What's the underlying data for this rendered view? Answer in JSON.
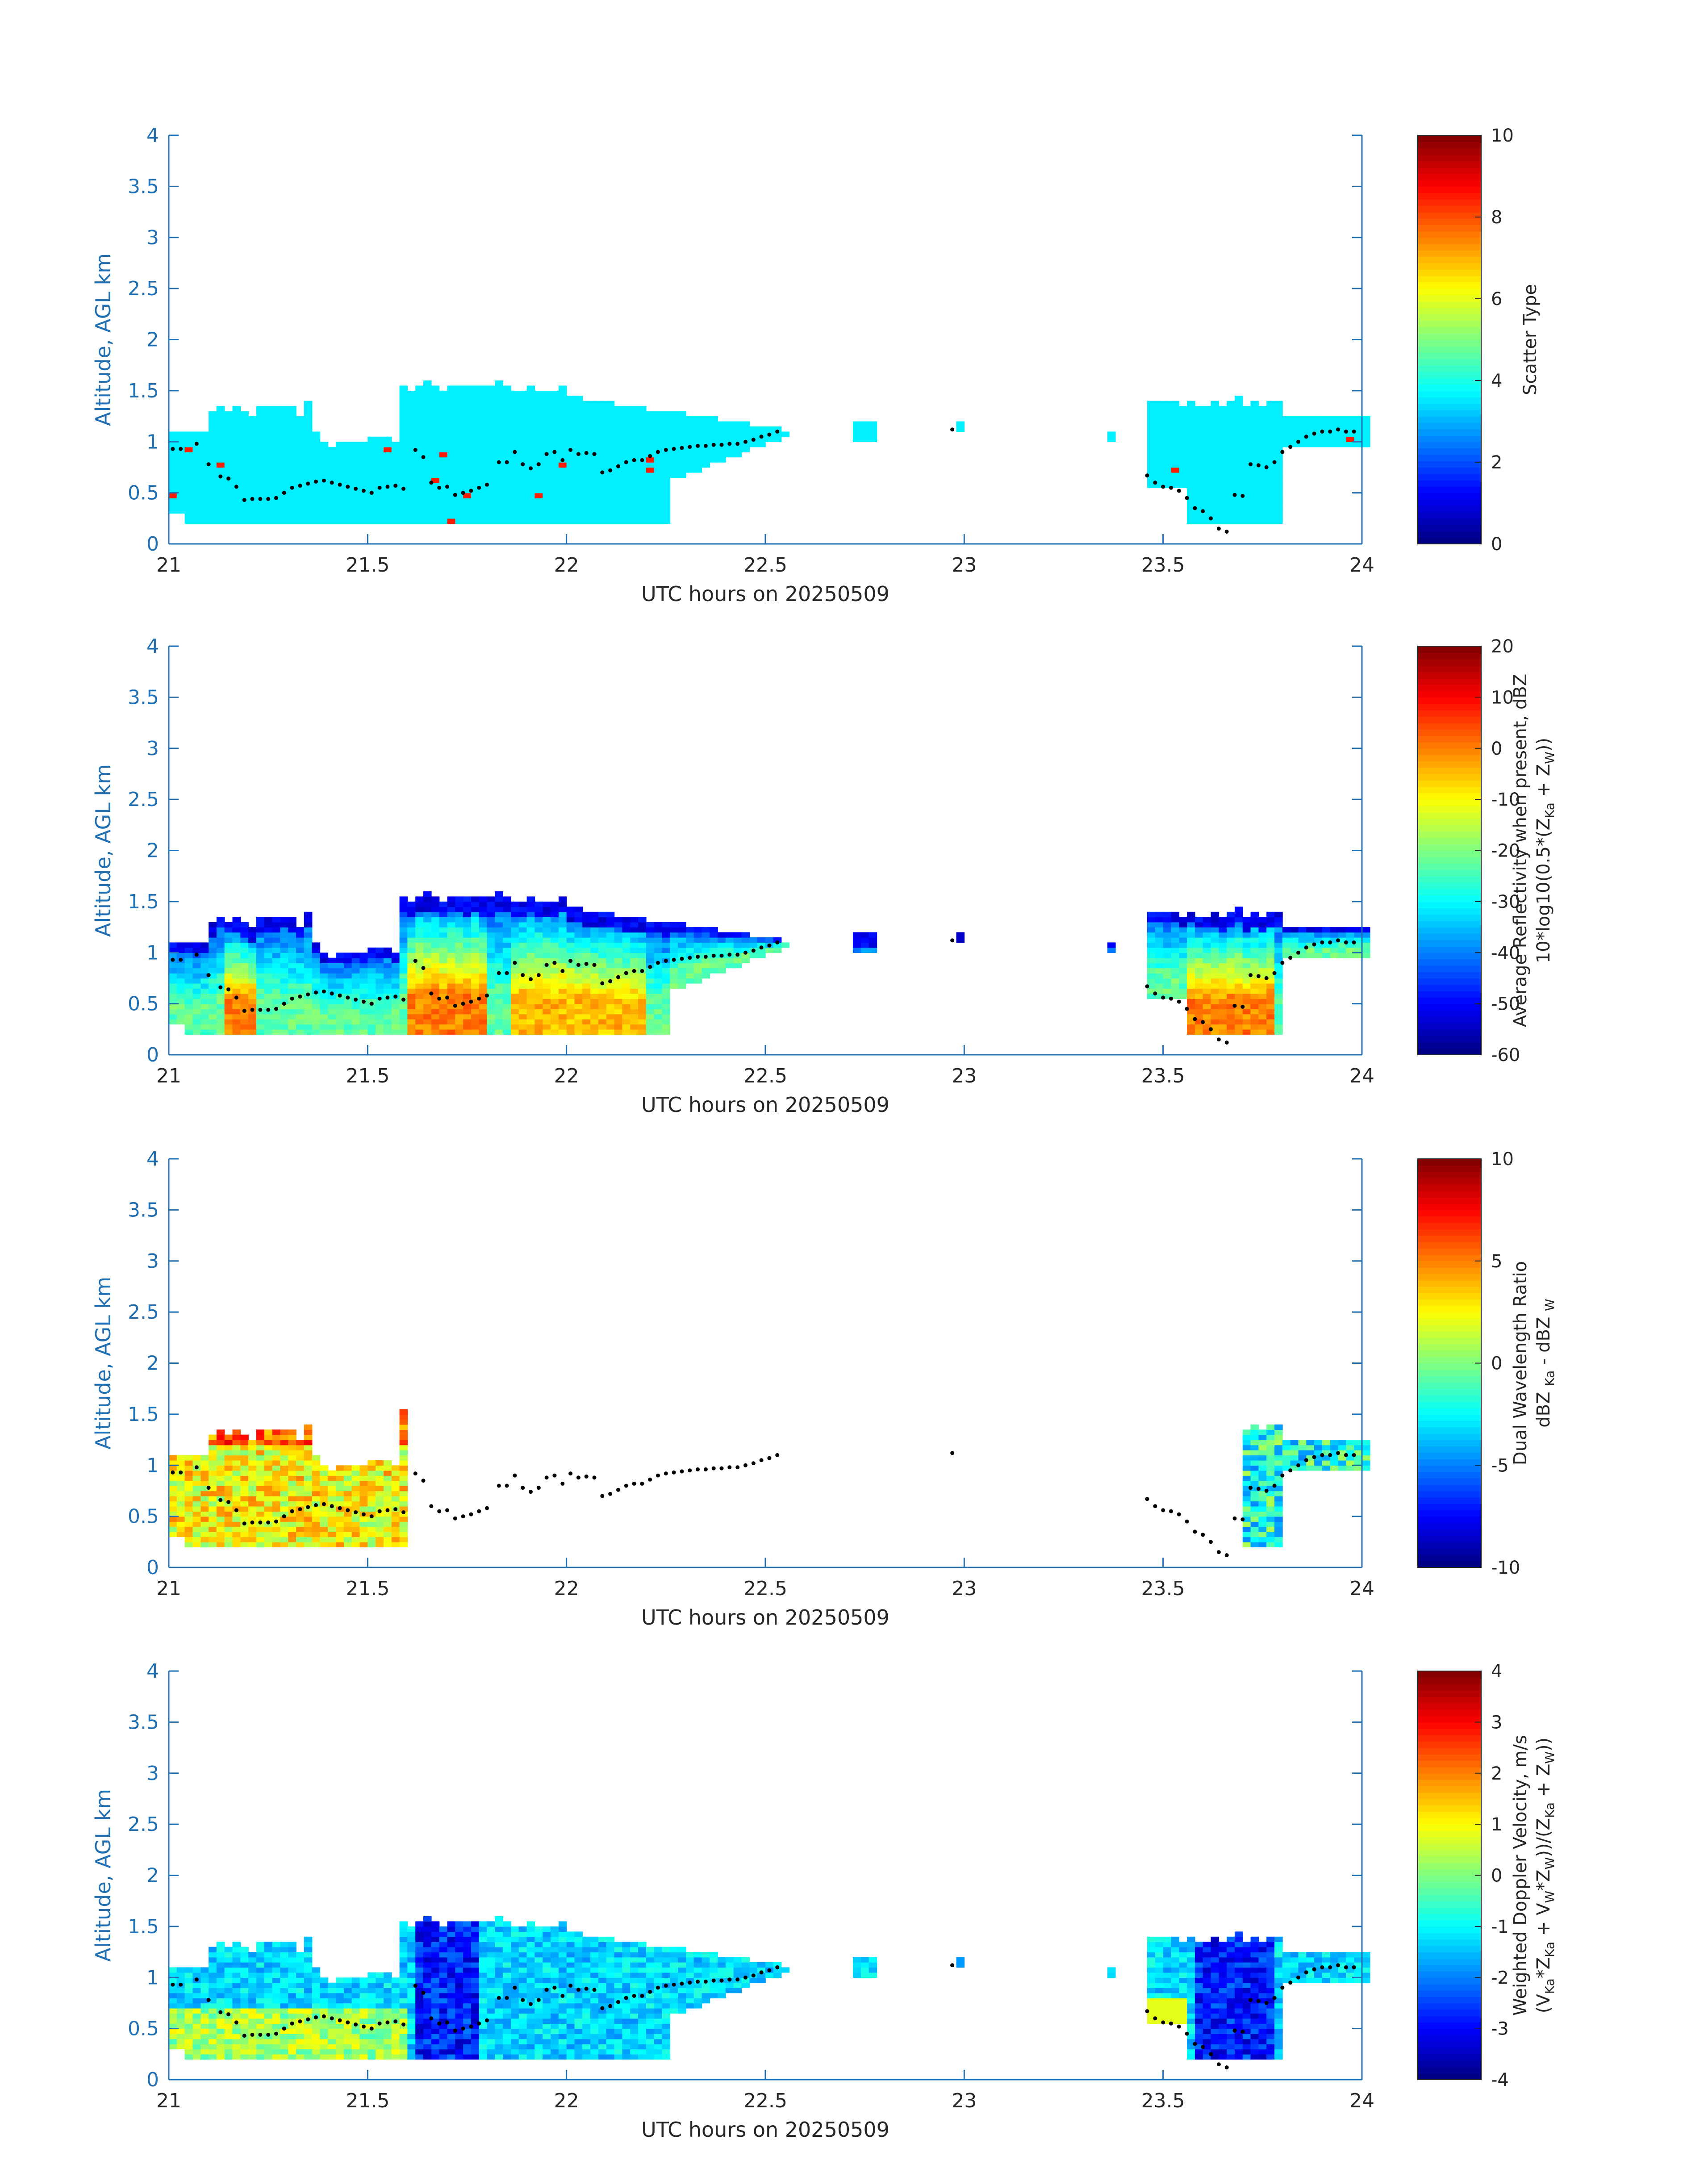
{
  "figure": {
    "xlabel": "UTC hours on 20250509",
    "ylabel": "Altitude, AGL km",
    "colors": {
      "axis": "#1f6fb2",
      "text": "#262626",
      "marker": "#000000"
    }
  },
  "chart_data": [
    {
      "type": "heatmap",
      "xlabel": "UTC hours on 20250509",
      "ylabel": "Altitude, AGL km",
      "xlim": [
        21,
        24
      ],
      "ylim": [
        0,
        4
      ],
      "xticks": [
        "21",
        "21.5",
        "22",
        "22.5",
        "23",
        "23.5",
        "24"
      ],
      "yticks": [
        "0",
        "0.5",
        "1",
        "1.5",
        "2",
        "2.5",
        "3",
        "3.5",
        "4"
      ],
      "colorbar": {
        "label": "Scatter Type",
        "label2": "",
        "range": [
          0,
          10
        ],
        "ticks": [
          "0",
          "2",
          "4",
          "6",
          "8",
          "10"
        ],
        "colormap": "jet"
      },
      "field": "scatter",
      "overlay_points": "cloud-base"
    },
    {
      "type": "heatmap",
      "xlabel": "UTC hours on 20250509",
      "ylabel": "Altitude, AGL km",
      "xlim": [
        21,
        24
      ],
      "ylim": [
        0,
        4
      ],
      "xticks": [
        "21",
        "21.5",
        "22",
        "22.5",
        "23",
        "23.5",
        "24"
      ],
      "yticks": [
        "0",
        "0.5",
        "1",
        "1.5",
        "2",
        "2.5",
        "3",
        "3.5",
        "4"
      ],
      "colorbar": {
        "label": "Average Reflectivity when present, dBZ",
        "label2_parts": [
          "10*log10(0.5*(Z",
          "Ka",
          " + Z",
          "W",
          "))"
        ],
        "range": [
          -60,
          20
        ],
        "ticks": [
          "-60",
          "-50",
          "-40",
          "-30",
          "-20",
          "-10",
          "0",
          "10",
          "20"
        ],
        "colormap": "jet"
      },
      "field": "reflectivity",
      "overlay_points": "cloud-base"
    },
    {
      "type": "heatmap",
      "xlabel": "UTC hours on 20250509",
      "ylabel": "Altitude, AGL km",
      "xlim": [
        21,
        24
      ],
      "ylim": [
        0,
        4
      ],
      "xticks": [
        "21",
        "21.5",
        "22",
        "22.5",
        "23",
        "23.5",
        "24"
      ],
      "yticks": [
        "0",
        "0.5",
        "1",
        "1.5",
        "2",
        "2.5",
        "3",
        "3.5",
        "4"
      ],
      "colorbar": {
        "label": "Dual Wavelength Ratio",
        "label2_parts": [
          "dBZ ",
          "Ka",
          " - dBZ ",
          "W",
          ""
        ],
        "range": [
          -10,
          10
        ],
        "ticks": [
          "-10",
          "-5",
          "0",
          "5",
          "10"
        ],
        "colormap": "jet"
      },
      "field": "dwr",
      "overlay_points": "cloud-base"
    },
    {
      "type": "heatmap",
      "xlabel": "UTC hours on 20250509",
      "ylabel": "Altitude, AGL km",
      "xlim": [
        21,
        24
      ],
      "ylim": [
        0,
        4
      ],
      "xticks": [
        "21",
        "21.5",
        "22",
        "22.5",
        "23",
        "23.5",
        "24"
      ],
      "yticks": [
        "0",
        "0.5",
        "1",
        "1.5",
        "2",
        "2.5",
        "3",
        "3.5",
        "4"
      ],
      "colorbar": {
        "label": "Weighted Doppler Velocity, m/s",
        "label2_parts": [
          "(V",
          "Ka",
          "*Z",
          "Ka",
          " + V",
          "W",
          "*Z",
          "W",
          "))/(Z",
          "Ka",
          " + Z",
          "W",
          "))"
        ],
        "range": [
          -4,
          4
        ],
        "ticks": [
          "-4",
          "-3",
          "-2",
          "-1",
          "0",
          "1",
          "2",
          "3",
          "4"
        ],
        "colormap": "jet"
      },
      "field": "velocity",
      "overlay_points": "cloud-base"
    }
  ],
  "cloud_base_points": {
    "hours": [
      21.01,
      21.03,
      21.07,
      21.1,
      21.13,
      21.15,
      21.17,
      21.19,
      21.21,
      21.23,
      21.25,
      21.27,
      21.29,
      21.31,
      21.33,
      21.35,
      21.37,
      21.39,
      21.41,
      21.43,
      21.45,
      21.47,
      21.49,
      21.51,
      21.53,
      21.55,
      21.57,
      21.59,
      21.62,
      21.64,
      21.66,
      21.68,
      21.7,
      21.72,
      21.74,
      21.76,
      21.78,
      21.8,
      21.83,
      21.85,
      21.87,
      21.89,
      21.91,
      21.93,
      21.95,
      21.97,
      21.99,
      22.01,
      22.03,
      22.05,
      22.07,
      22.09,
      22.11,
      22.13,
      22.15,
      22.17,
      22.19,
      22.21,
      22.23,
      22.25,
      22.27,
      22.29,
      22.31,
      22.33,
      22.35,
      22.37,
      22.39,
      22.41,
      22.43,
      22.45,
      22.47,
      22.49,
      22.51,
      22.53,
      22.97,
      23.46,
      23.48,
      23.5,
      23.52,
      23.54,
      23.56,
      23.58,
      23.6,
      23.62,
      23.64,
      23.66,
      23.68,
      23.7,
      23.72,
      23.74,
      23.76,
      23.78,
      23.8,
      23.82,
      23.84,
      23.86,
      23.88,
      23.9,
      23.92,
      23.94,
      23.96,
      23.98
    ],
    "altitudes_km": [
      0.93,
      0.93,
      0.98,
      0.78,
      0.66,
      0.64,
      0.56,
      0.43,
      0.44,
      0.44,
      0.44,
      0.45,
      0.5,
      0.55,
      0.57,
      0.59,
      0.61,
      0.62,
      0.6,
      0.58,
      0.56,
      0.54,
      0.52,
      0.5,
      0.55,
      0.56,
      0.57,
      0.54,
      0.92,
      0.85,
      0.6,
      0.55,
      0.56,
      0.48,
      0.5,
      0.52,
      0.55,
      0.58,
      0.8,
      0.8,
      0.9,
      0.78,
      0.74,
      0.78,
      0.88,
      0.9,
      0.82,
      0.92,
      0.88,
      0.89,
      0.88,
      0.7,
      0.72,
      0.76,
      0.8,
      0.82,
      0.82,
      0.86,
      0.9,
      0.92,
      0.93,
      0.94,
      0.95,
      0.96,
      0.96,
      0.97,
      0.97,
      0.98,
      0.98,
      1.0,
      1.02,
      1.05,
      1.07,
      1.1,
      1.12,
      0.67,
      0.6,
      0.56,
      0.55,
      0.52,
      0.45,
      0.35,
      0.32,
      0.25,
      0.15,
      0.12,
      0.48,
      0.47,
      0.78,
      0.77,
      0.75,
      0.8,
      0.9,
      0.95,
      1.0,
      1.05,
      1.08,
      1.1,
      1.1,
      1.12,
      1.1,
      1.1
    ]
  }
}
